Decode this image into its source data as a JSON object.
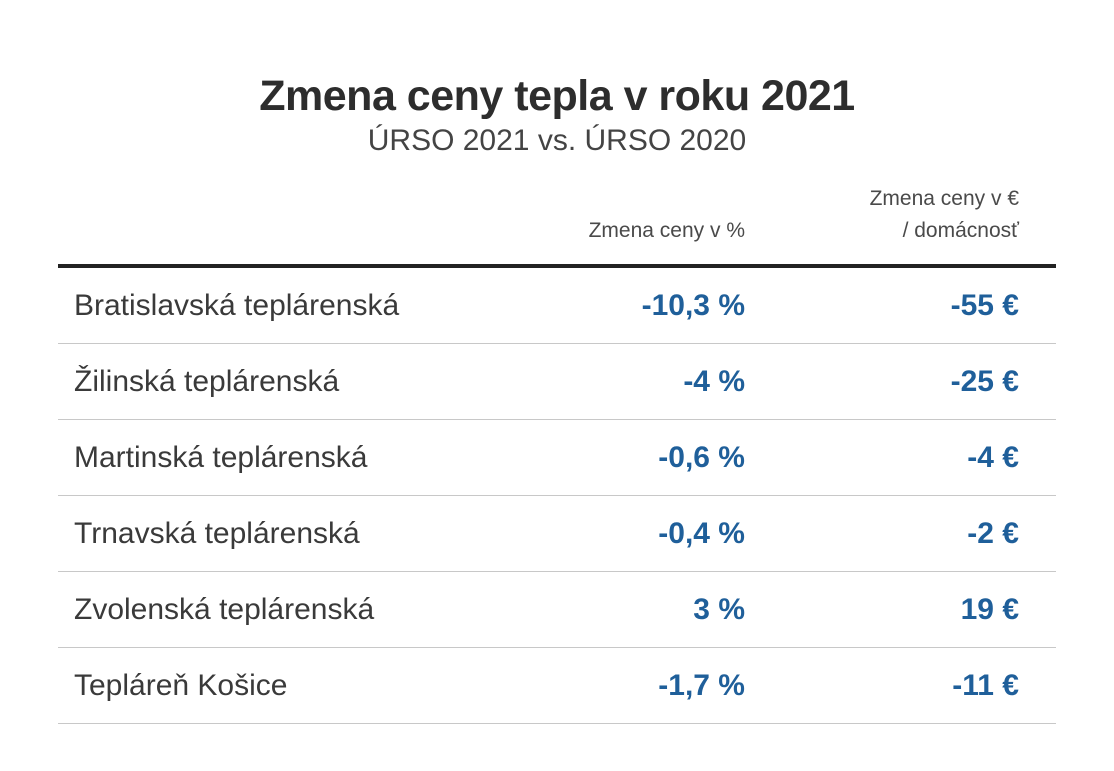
{
  "chart_data": {
    "type": "table",
    "title": "Zmena ceny tepla v roku 2021",
    "subtitle": "ÚRSO 2021 vs. ÚRSO 2020",
    "columns": [
      "",
      "Zmena ceny v %",
      "Zmena ceny v € / domácnosť"
    ],
    "column_header_lines": {
      "pct": [
        "Zmena ceny v %"
      ],
      "eur": [
        "Zmena ceny v €",
        "/ domácnosť"
      ]
    },
    "rows": [
      {
        "name": "Bratislavská teplárenská",
        "pct": "-10,3 %",
        "eur": "-55 €",
        "pct_value": -10.3,
        "eur_value": -55
      },
      {
        "name": "Žilinská teplárenská",
        "pct": "-4 %",
        "eur": "-25 €",
        "pct_value": -4,
        "eur_value": -25
      },
      {
        "name": "Martinská teplárenská",
        "pct": "-0,6 %",
        "eur": "-4 €",
        "pct_value": -0.6,
        "eur_value": -4
      },
      {
        "name": "Trnavská teplárenská",
        "pct": "-0,4 %",
        "eur": "-2 €",
        "pct_value": -0.4,
        "eur_value": -2
      },
      {
        "name": "Zvolenská teplárenská",
        "pct": "3 %",
        "eur": "19 €",
        "pct_value": 3,
        "eur_value": 19
      },
      {
        "name": "Tepláreň Košice",
        "pct": "-1,7 %",
        "eur": "-11 €",
        "pct_value": -1.7,
        "eur_value": -11
      }
    ]
  },
  "colors": {
    "value": "#1f5f9a",
    "text": "#3a3a3a",
    "rule": "#222222",
    "row_border": "#c8c8c8"
  }
}
